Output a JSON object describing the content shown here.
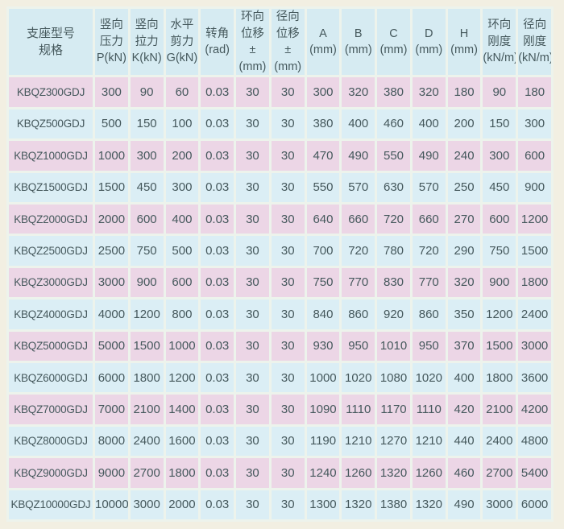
{
  "colors": {
    "page_background": "#f2efe2",
    "header_background": "#d6ebf2",
    "row_pink": "#ecd6e6",
    "row_blue": "#dbeef5",
    "grid_line": "#edf3ec",
    "text": "#45585c"
  },
  "table": {
    "columns": [
      {
        "label": "支座型号\n规格"
      },
      {
        "label": "竖向\n压力\nP(kN)"
      },
      {
        "label": "竖向\n拉力\nK(kN)"
      },
      {
        "label": "水平\n剪力\nG(kN)"
      },
      {
        "label": "转角\n(rad)"
      },
      {
        "label": "环向\n位移\n±(mm)"
      },
      {
        "label": "径向\n位移\n±(mm)"
      },
      {
        "label": "A\n(mm)"
      },
      {
        "label": "B\n(mm)"
      },
      {
        "label": "C\n(mm)"
      },
      {
        "label": "D\n(mm)"
      },
      {
        "label": "H\n(mm)"
      },
      {
        "label": "环向\n刚度\n(kN/m)"
      },
      {
        "label": "径向\n刚度\n(kN/m)"
      }
    ],
    "rows": [
      [
        "KBQZ300GDJ",
        "300",
        "90",
        "60",
        "0.03",
        "30",
        "30",
        "300",
        "320",
        "380",
        "320",
        "180",
        "90",
        "180"
      ],
      [
        "KBQZ500GDJ",
        "500",
        "150",
        "100",
        "0.03",
        "30",
        "30",
        "380",
        "400",
        "460",
        "400",
        "200",
        "150",
        "300"
      ],
      [
        "KBQZ1000GDJ",
        "1000",
        "300",
        "200",
        "0.03",
        "30",
        "30",
        "470",
        "490",
        "550",
        "490",
        "240",
        "300",
        "600"
      ],
      [
        "KBQZ1500GDJ",
        "1500",
        "450",
        "300",
        "0.03",
        "30",
        "30",
        "550",
        "570",
        "630",
        "570",
        "250",
        "450",
        "900"
      ],
      [
        "KBQZ2000GDJ",
        "2000",
        "600",
        "400",
        "0.03",
        "30",
        "30",
        "640",
        "660",
        "720",
        "660",
        "270",
        "600",
        "1200"
      ],
      [
        "KBQZ2500GDJ",
        "2500",
        "750",
        "500",
        "0.03",
        "30",
        "30",
        "700",
        "720",
        "780",
        "720",
        "290",
        "750",
        "1500"
      ],
      [
        "KBQZ3000GDJ",
        "3000",
        "900",
        "600",
        "0.03",
        "30",
        "30",
        "750",
        "770",
        "830",
        "770",
        "320",
        "900",
        "1800"
      ],
      [
        "KBQZ4000GDJ",
        "4000",
        "1200",
        "800",
        "0.03",
        "30",
        "30",
        "840",
        "860",
        "920",
        "860",
        "350",
        "1200",
        "2400"
      ],
      [
        "KBQZ5000GDJ",
        "5000",
        "1500",
        "1000",
        "0.03",
        "30",
        "30",
        "930",
        "950",
        "1010",
        "950",
        "370",
        "1500",
        "3000"
      ],
      [
        "KBQZ6000GDJ",
        "6000",
        "1800",
        "1200",
        "0.03",
        "30",
        "30",
        "1000",
        "1020",
        "1080",
        "1020",
        "400",
        "1800",
        "3600"
      ],
      [
        "KBQZ7000GDJ",
        "7000",
        "2100",
        "1400",
        "0.03",
        "30",
        "30",
        "1090",
        "1110",
        "1170",
        "1110",
        "420",
        "2100",
        "4200"
      ],
      [
        "KBQZ8000GDJ",
        "8000",
        "2400",
        "1600",
        "0.03",
        "30",
        "30",
        "1190",
        "1210",
        "1270",
        "1210",
        "440",
        "2400",
        "4800"
      ],
      [
        "KBQZ9000GDJ",
        "9000",
        "2700",
        "1800",
        "0.03",
        "30",
        "30",
        "1240",
        "1260",
        "1320",
        "1260",
        "460",
        "2700",
        "5400"
      ],
      [
        "KBQZ10000GDJ",
        "10000",
        "3000",
        "2000",
        "0.03",
        "30",
        "30",
        "1300",
        "1320",
        "1380",
        "1320",
        "490",
        "3000",
        "6000"
      ]
    ]
  }
}
